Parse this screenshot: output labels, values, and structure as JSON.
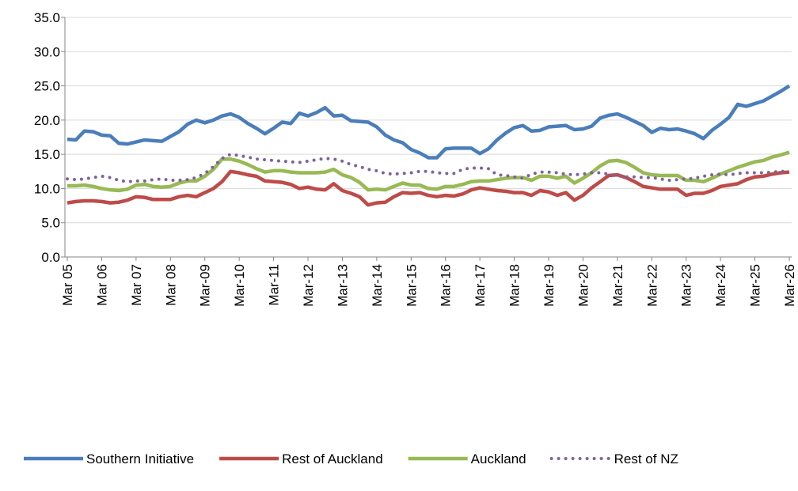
{
  "chart_data": {
    "type": "line",
    "categories": [
      "Mar 05",
      null,
      null,
      null,
      "Mar 06",
      null,
      null,
      null,
      "Mar 07",
      null,
      null,
      null,
      "Mar 08",
      null,
      null,
      null,
      "Mar-09",
      null,
      null,
      null,
      "Mar-10",
      null,
      null,
      null,
      "Mar-11",
      null,
      null,
      null,
      "Mar-12",
      null,
      null,
      null,
      "Mar-13",
      null,
      null,
      null,
      "Mar-14",
      null,
      null,
      null,
      "Mar-15",
      null,
      null,
      null,
      "Mar-16",
      null,
      null,
      null,
      "Mar-17",
      null,
      null,
      null,
      "Mar-18",
      null,
      null,
      null,
      "Mar-19",
      null,
      null,
      null,
      "Mar-20",
      null,
      null,
      null,
      "Mar-21",
      null,
      null,
      null,
      "Mar-22",
      null,
      null,
      null,
      "Mar-23",
      null,
      null,
      null,
      "Mar-24",
      null,
      null,
      null,
      "Mar-25",
      null,
      null,
      null,
      "Mar-26"
    ],
    "series": [
      {
        "name": "Southern Initiative",
        "color": "#4a7ebb",
        "dash": false,
        "values": [
          17.2,
          17.1,
          18.4,
          18.3,
          17.8,
          17.7,
          16.6,
          16.5,
          16.8,
          17.1,
          17.0,
          16.9,
          17.6,
          18.3,
          19.4,
          20.0,
          19.6,
          20.0,
          20.6,
          20.9,
          20.4,
          19.5,
          18.8,
          18.0,
          18.8,
          19.7,
          19.5,
          21.0,
          20.6,
          21.1,
          21.8,
          20.6,
          20.7,
          19.9,
          19.8,
          19.7,
          19.0,
          17.8,
          17.1,
          16.7,
          15.7,
          15.2,
          14.5,
          14.5,
          15.8,
          15.9,
          15.9,
          15.9,
          15.1,
          15.8,
          17.1,
          18.1,
          18.9,
          19.2,
          18.4,
          18.5,
          19.0,
          19.1,
          19.2,
          18.6,
          18.7,
          19.1,
          20.3,
          20.7,
          20.9,
          20.4,
          19.8,
          19.2,
          18.2,
          18.8,
          18.6,
          18.7,
          18.4,
          18.0,
          17.3,
          18.5,
          19.4,
          20.4,
          22.3,
          22.0,
          22.4,
          22.8,
          23.5,
          24.2,
          25.0
        ]
      },
      {
        "name": "Rest of Auckland",
        "color": "#be4b48",
        "dash": false,
        "values": [
          7.9,
          8.1,
          8.2,
          8.2,
          8.1,
          7.9,
          8.0,
          8.3,
          8.8,
          8.7,
          8.4,
          8.4,
          8.4,
          8.8,
          9.0,
          8.8,
          9.4,
          10.0,
          11.0,
          12.5,
          12.3,
          12.0,
          11.8,
          11.1,
          11.0,
          10.9,
          10.6,
          10.0,
          10.2,
          9.9,
          9.8,
          10.7,
          9.7,
          9.3,
          8.8,
          7.6,
          7.9,
          8.0,
          8.8,
          9.4,
          9.3,
          9.4,
          9.0,
          8.8,
          9.0,
          8.9,
          9.2,
          9.8,
          10.1,
          9.9,
          9.7,
          9.6,
          9.4,
          9.4,
          9.0,
          9.7,
          9.5,
          9.0,
          9.4,
          8.3,
          9.0,
          10.1,
          11.0,
          11.9,
          12.0,
          11.6,
          11.0,
          10.3,
          10.1,
          9.9,
          9.9,
          9.9,
          9.0,
          9.3,
          9.3,
          9.7,
          10.3,
          10.5,
          10.7,
          11.3,
          11.7,
          11.8,
          12.1,
          12.3,
          12.4
        ]
      },
      {
        "name": "Auckland",
        "color": "#98b954",
        "dash": false,
        "values": [
          10.4,
          10.4,
          10.5,
          10.3,
          10.0,
          9.8,
          9.7,
          9.9,
          10.5,
          10.6,
          10.3,
          10.2,
          10.3,
          10.8,
          11.1,
          11.1,
          11.8,
          12.8,
          14.3,
          14.3,
          14.0,
          13.5,
          12.9,
          12.4,
          12.6,
          12.6,
          12.4,
          12.3,
          12.3,
          12.3,
          12.4,
          12.8,
          12.0,
          11.6,
          10.9,
          9.8,
          9.9,
          9.8,
          10.3,
          10.8,
          10.5,
          10.5,
          10.0,
          9.9,
          10.3,
          10.3,
          10.6,
          11.0,
          11.1,
          11.1,
          11.3,
          11.5,
          11.6,
          11.6,
          11.2,
          11.8,
          11.8,
          11.5,
          11.8,
          10.8,
          11.5,
          12.3,
          13.3,
          14.0,
          14.1,
          13.8,
          13.1,
          12.3,
          12.0,
          11.9,
          11.9,
          11.9,
          11.2,
          11.2,
          11.0,
          11.5,
          12.1,
          12.6,
          13.1,
          13.5,
          13.9,
          14.1,
          14.6,
          14.9,
          15.3
        ]
      },
      {
        "name": "Rest of NZ",
        "color": "#7e62a1",
        "dash": true,
        "values": [
          11.4,
          11.3,
          11.4,
          11.6,
          11.8,
          11.6,
          11.2,
          11.0,
          11.1,
          11.1,
          11.3,
          11.4,
          11.2,
          11.2,
          11.3,
          11.6,
          12.2,
          13.2,
          14.4,
          15.0,
          14.8,
          14.6,
          14.3,
          14.2,
          14.1,
          14.0,
          13.9,
          13.8,
          14.0,
          14.2,
          14.4,
          14.3,
          14.0,
          13.5,
          13.2,
          12.8,
          12.6,
          12.2,
          12.1,
          12.2,
          12.3,
          12.5,
          12.5,
          12.3,
          12.2,
          12.2,
          12.8,
          13.0,
          13.0,
          12.9,
          12.0,
          11.9,
          11.7,
          11.5,
          12.1,
          12.4,
          12.4,
          12.3,
          12.1,
          12.0,
          12.1,
          12.3,
          12.3,
          12.1,
          11.9,
          11.7,
          11.7,
          11.6,
          11.6,
          11.4,
          11.2,
          11.3,
          11.4,
          11.5,
          11.8,
          12.0,
          12.1,
          12.0,
          12.2,
          12.3,
          12.3,
          12.3,
          12.4,
          12.5,
          12.5
        ]
      }
    ],
    "ylim": [
      0,
      35
    ],
    "yticks": [
      {
        "value": 0,
        "label": "0.0"
      },
      {
        "value": 5,
        "label": "5.0"
      },
      {
        "value": 10,
        "label": "10.0"
      },
      {
        "value": 15,
        "label": "15.0"
      },
      {
        "value": 20,
        "label": "20.0"
      },
      {
        "value": 25,
        "label": "25.0"
      },
      {
        "value": 30,
        "label": "30.0"
      },
      {
        "value": 35,
        "label": "35.0"
      }
    ],
    "grid": true,
    "legend": "bottom"
  }
}
